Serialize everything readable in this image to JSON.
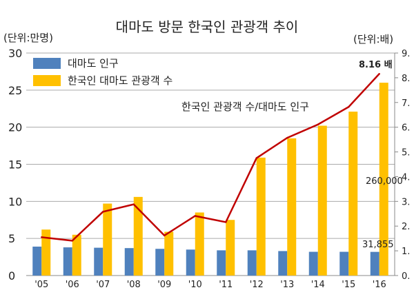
{
  "chart_data": {
    "type": "bar",
    "title": "대마도 방문 한국인 관광객 추이",
    "left_unit_label": "(단위:만명)",
    "right_unit_label": "(단위:배)",
    "categories": [
      "'05",
      "'06",
      "'07",
      "'08",
      "'09",
      "'10",
      "'11",
      "'12",
      "'13",
      "'14",
      "'15",
      "'16"
    ],
    "series": [
      {
        "name": "대마도 인구",
        "type": "bar",
        "axis": "left",
        "color": "#4f81bd",
        "values": [
          3.9,
          3.8,
          3.75,
          3.7,
          3.6,
          3.5,
          3.4,
          3.4,
          3.3,
          3.2,
          3.2,
          3.19
        ]
      },
      {
        "name": "한국인 대마도 관광객 수",
        "type": "bar",
        "axis": "left",
        "color": "#ffc000",
        "values": [
          6.2,
          5.5,
          9.7,
          10.6,
          5.9,
          8.5,
          7.5,
          15.9,
          18.5,
          20.2,
          22.1,
          26.0
        ]
      },
      {
        "name": "한국인 관광객 수/대마도 인구",
        "type": "line",
        "axis": "right",
        "color": "#c00000",
        "values": [
          1.55,
          1.41,
          2.58,
          2.88,
          1.62,
          2.41,
          2.16,
          4.75,
          5.57,
          6.11,
          6.82,
          8.16
        ]
      }
    ],
    "left_axis": {
      "ylim": [
        0,
        30
      ],
      "ticks": [
        "0",
        "5",
        "10",
        "15",
        "20",
        "25",
        "30"
      ]
    },
    "right_axis": {
      "ylim": [
        0,
        9
      ],
      "ticks": [
        "0.",
        "1.",
        "2.",
        "3.",
        "4.",
        "5.",
        "6.",
        "7.",
        "8.",
        "9."
      ]
    },
    "grid": true,
    "legend_position": "top-left",
    "annotations": {
      "line_label": "한국인 관광객 수/대마도 인구",
      "last_ratio": "8.16 배",
      "last_visitors": "260,000",
      "last_population": "31,855"
    }
  }
}
